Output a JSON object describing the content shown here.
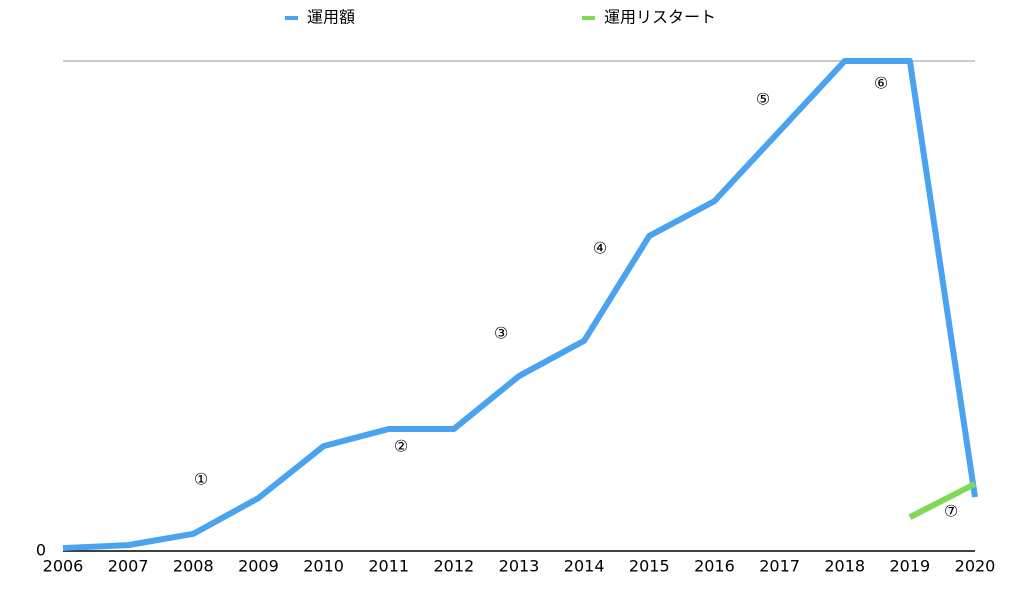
{
  "chart_data": {
    "type": "line",
    "categories": [
      "2006",
      "2007",
      "2008",
      "2009",
      "2010",
      "2011",
      "2012",
      "2013",
      "2014",
      "2015",
      "2016",
      "2017",
      "2018",
      "2019",
      "2020"
    ],
    "series": [
      {
        "name": "運用額",
        "color": "#4aa3ee",
        "values": [
          0.6,
          1.2,
          3.5,
          10.8,
          21.4,
          24.9,
          24.9,
          35.7,
          42.9,
          64.3,
          71.4,
          85.7,
          100,
          100,
          11.0
        ]
      },
      {
        "name": "運用リスタート",
        "color": "#7ed957",
        "values": [
          null,
          null,
          null,
          null,
          null,
          null,
          null,
          null,
          null,
          null,
          null,
          null,
          null,
          6.9,
          13.7
        ]
      }
    ],
    "ylim": [
      0,
      100
    ],
    "yticks": [
      0
    ],
    "annotations": [
      "①",
      "②",
      "③",
      "④",
      "⑤",
      "⑥",
      "⑦"
    ],
    "annotation_color": "#e8402a"
  }
}
